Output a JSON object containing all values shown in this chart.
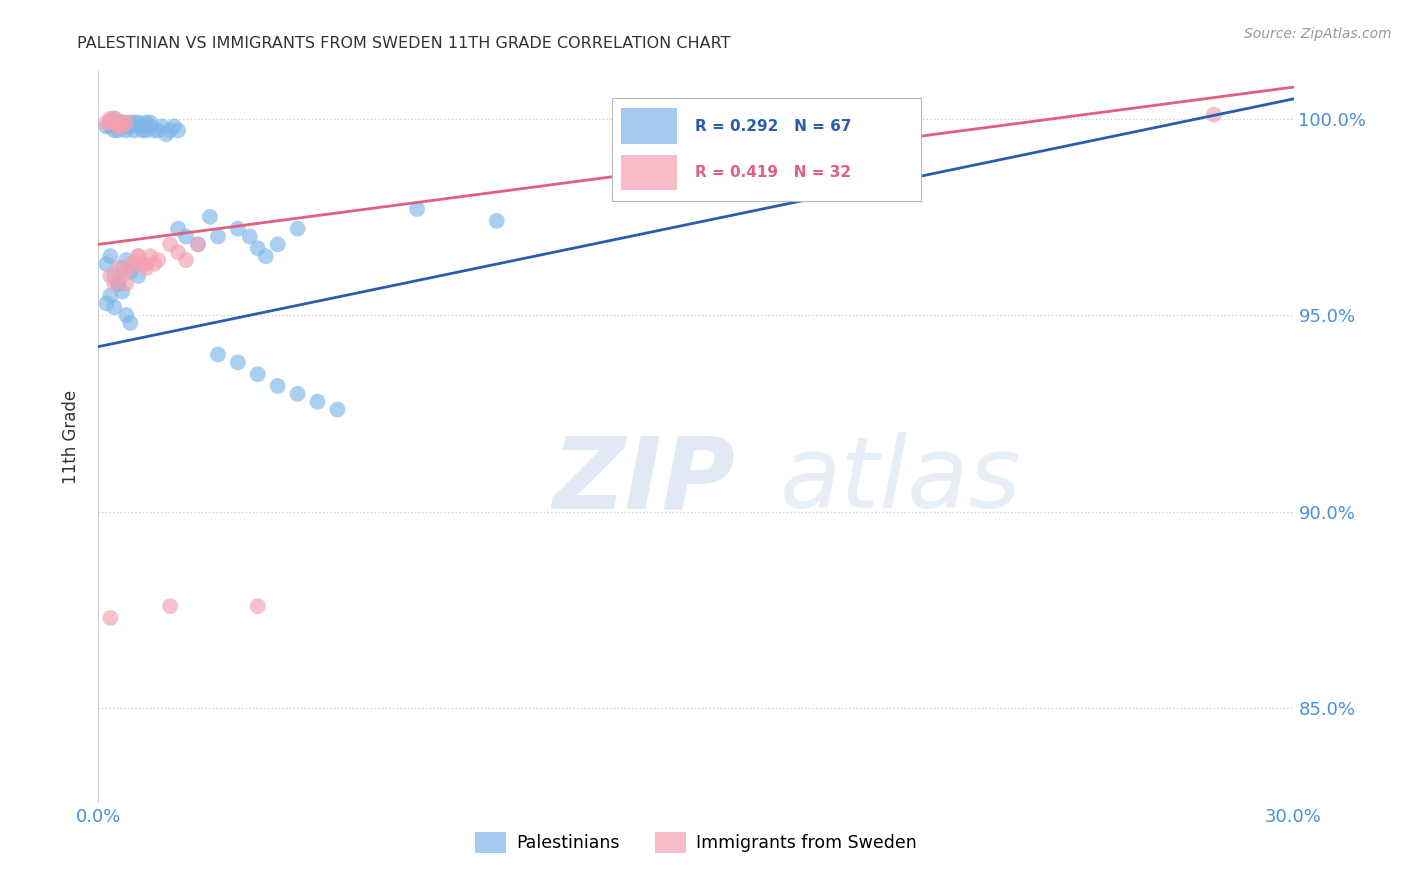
{
  "title": "PALESTINIAN VS IMMIGRANTS FROM SWEDEN 11TH GRADE CORRELATION CHART",
  "source": "Source: ZipAtlas.com",
  "ylabel": "11th Grade",
  "y_tick_labels": [
    "85.0%",
    "90.0%",
    "95.0%",
    "100.0%"
  ],
  "y_tick_values": [
    0.85,
    0.9,
    0.95,
    1.0
  ],
  "x_min": 0.0,
  "x_max": 0.3,
  "y_min": 0.826,
  "y_max": 1.012,
  "blue_R": 0.292,
  "blue_N": 67,
  "pink_R": 0.419,
  "pink_N": 32,
  "blue_color": "#7EB6E8",
  "pink_color": "#F4A0B0",
  "blue_line_color": "#2B5DAD",
  "pink_line_color": "#E06080",
  "legend_blue": "Palestinians",
  "legend_pink": "Immigrants from Sweden",
  "watermark_zip": "ZIP",
  "watermark_atlas": "atlas",
  "background_color": "#FFFFFF",
  "grid_color": "#CCCCCC",
  "axis_label_color": "#4A90D9",
  "title_color": "#333333",
  "blue_line_x0": 0.0,
  "blue_line_y0": 0.942,
  "blue_line_x1": 0.3,
  "blue_line_y1": 1.005,
  "pink_line_x0": 0.0,
  "pink_line_y0": 0.968,
  "pink_line_x1": 0.3,
  "pink_line_y1": 1.008
}
